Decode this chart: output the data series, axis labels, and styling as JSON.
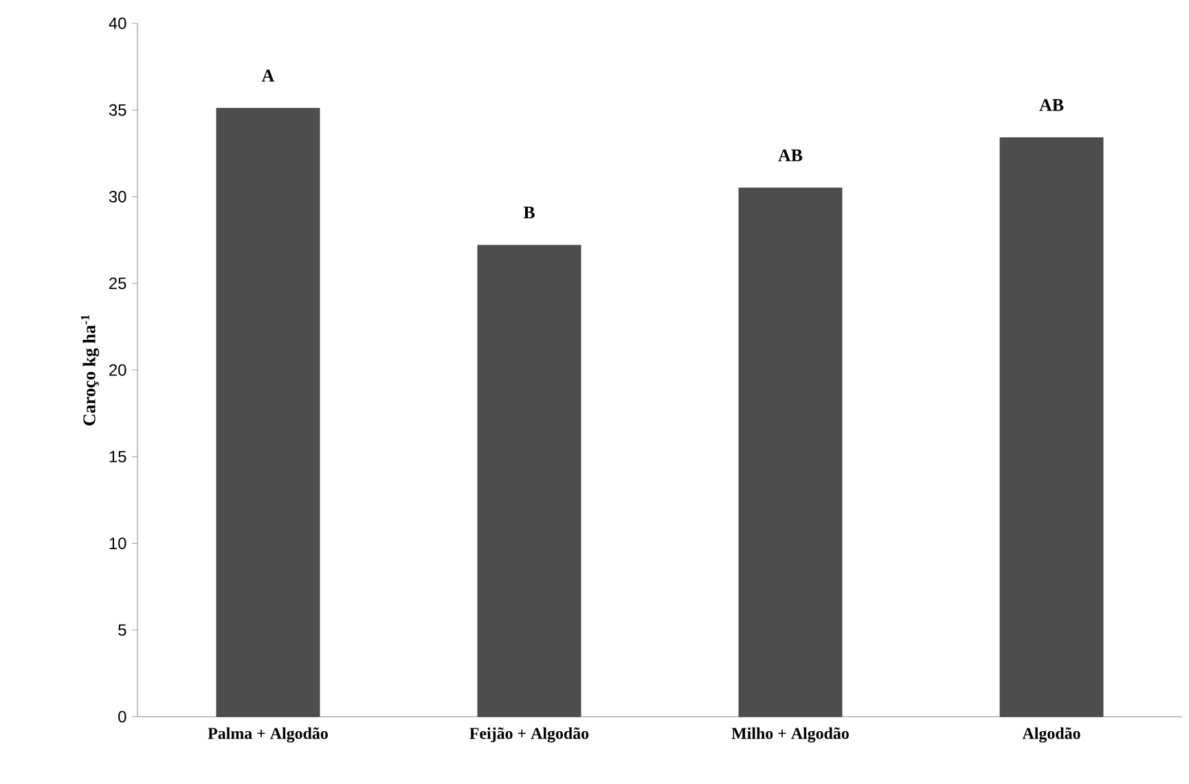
{
  "chart_data": {
    "type": "bar",
    "ylabel": "Caroço kg ha$^{-1}$",
    "categories": [
      "Palma + Algodão",
      "Feijão + Algodão",
      "Milho + Algodão",
      "Algodão"
    ],
    "values": [
      35.1,
      27.2,
      30.5,
      33.4
    ],
    "color": "#4d4d4d",
    "ylim": [
      0,
      40
    ],
    "yticks": [
      0,
      5,
      10,
      15,
      20,
      25,
      30,
      35,
      40
    ],
    "grid": false,
    "annotations": [
      "A",
      "B",
      "AB",
      "AB"
    ]
  }
}
